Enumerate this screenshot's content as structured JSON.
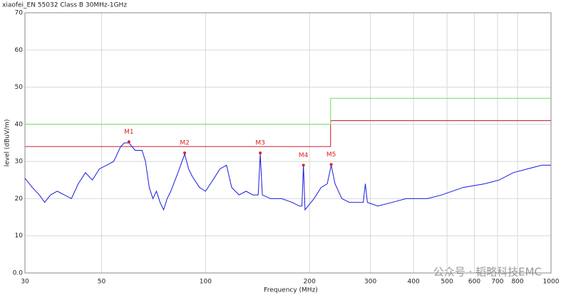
{
  "chart_data": {
    "type": "line",
    "title": "xiaofei_EN 55032 Class B 30MHz-1GHz",
    "x_label": "Frequency (MHz)",
    "y_label": "level (dBuV/m)",
    "xscale": "log",
    "xlim": [
      30,
      1000
    ],
    "ylim": [
      0,
      70
    ],
    "xticks": [
      30,
      50,
      100,
      200,
      300,
      400,
      500,
      600,
      700,
      800,
      1000
    ],
    "yticks": [
      {
        "value": 0,
        "label": "0.0"
      },
      10,
      20,
      30,
      40,
      50,
      60,
      70
    ],
    "grid": true,
    "trace": {
      "color": "#1a1ae0",
      "x": [
        30,
        31.5,
        33.0,
        34.2,
        35.6,
        37.2,
        39.0,
        40.9,
        42.8,
        44.9,
        47.0,
        49.3,
        51.7,
        54.2,
        56.8,
        58.2,
        60,
        62.5,
        65.5,
        67.0,
        68.7,
        70.4,
        72.1,
        73.8,
        75.6,
        77.4,
        79.3,
        83.2,
        87,
        89.3,
        91.5,
        96,
        100,
        105,
        110,
        115,
        119,
        125,
        131,
        137,
        142,
        144,
        146,
        154,
        166,
        178,
        187,
        190,
        192,
        194,
        206,
        216,
        225,
        231,
        237,
        248,
        261,
        273,
        286,
        290,
        294,
        315,
        347,
        381,
        439,
        483,
        557,
        643,
        707,
        778,
        855,
        940,
        1000
      ],
      "values": [
        25.5,
        23,
        21,
        19,
        21,
        22,
        21,
        20,
        24,
        27,
        25,
        28,
        29,
        30,
        34,
        35,
        35,
        33,
        33,
        30,
        23,
        20,
        22,
        19,
        17,
        20,
        22,
        27,
        32,
        28,
        26,
        23,
        22,
        25,
        28,
        29,
        23,
        21,
        22,
        21,
        21,
        32,
        21,
        20,
        20,
        19,
        18,
        18,
        29,
        17,
        20,
        23,
        24,
        29,
        24,
        20,
        19,
        19,
        19,
        24,
        19,
        18,
        19,
        20,
        20,
        21,
        23,
        24,
        25,
        27,
        28,
        29,
        29
      ]
    },
    "limits": [
      {
        "color": "#d03848",
        "x": [
          30,
          230,
          230,
          1000
        ],
        "values": [
          34,
          34,
          41,
          41
        ]
      },
      {
        "color": "#7ee07e",
        "x": [
          30,
          230,
          230,
          1000
        ],
        "values": [
          40,
          40,
          47,
          47
        ]
      }
    ],
    "markers": [
      {
        "label": "M1",
        "x": 60,
        "y": 35.3
      },
      {
        "label": "M2",
        "x": 87,
        "y": 32.3
      },
      {
        "label": "M3",
        "x": 144,
        "y": 32.3
      },
      {
        "label": "M4",
        "x": 192,
        "y": 29
      },
      {
        "label": "M5",
        "x": 231,
        "y": 29.2
      }
    ],
    "marker_color": "#e02020",
    "watermark": "公众号 · 韬略科技EMC"
  }
}
